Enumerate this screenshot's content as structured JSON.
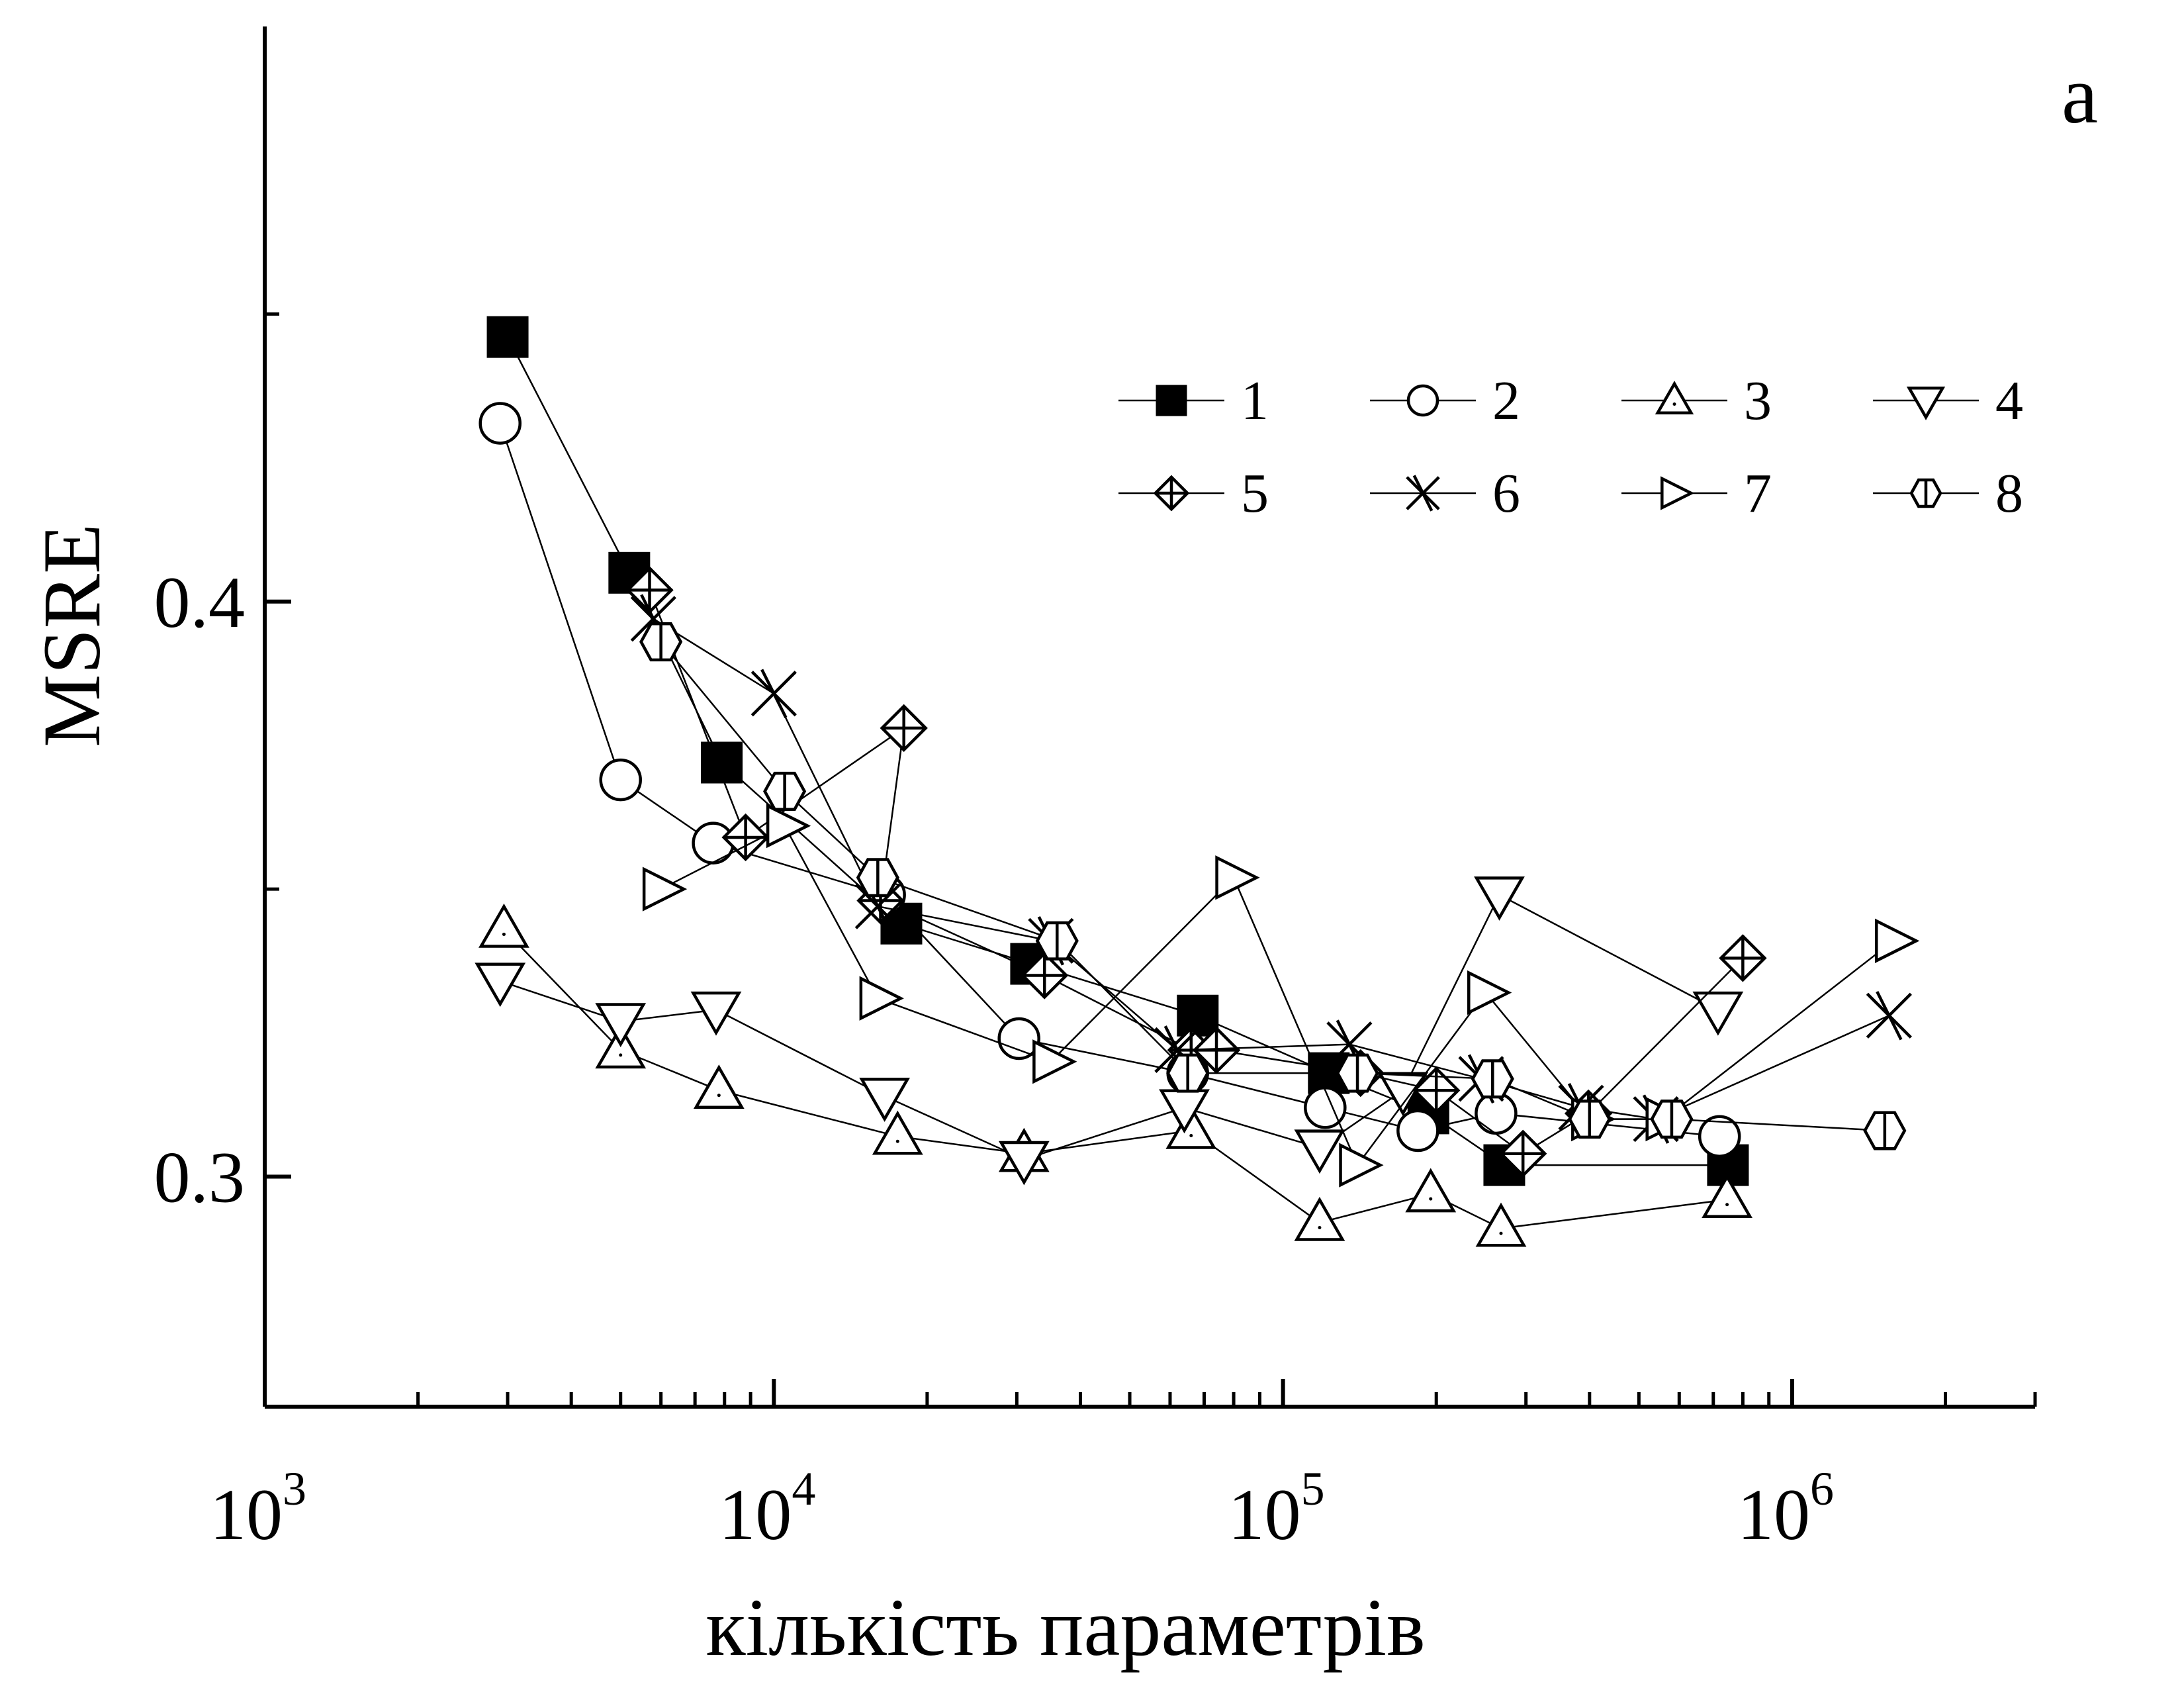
{
  "chart_data": {
    "type": "scatter",
    "panel_label": "a",
    "xlabel": "кількість параметрів",
    "ylabel": "MSRE",
    "x_scale": "log",
    "xlim": [
      1000,
      3000000
    ],
    "ylim": [
      0.26,
      0.5
    ],
    "x_ticks": [
      {
        "value": 1000,
        "base": "10",
        "exp": "3"
      },
      {
        "value": 10000,
        "base": "10",
        "exp": "4"
      },
      {
        "value": 100000,
        "base": "10",
        "exp": "5"
      },
      {
        "value": 1000000,
        "base": "10",
        "exp": "6"
      }
    ],
    "y_ticks": [
      {
        "value": 0.3,
        "label": "0.3"
      },
      {
        "value": 0.4,
        "label": "0.4"
      }
    ],
    "y_minor_ticks": [
      0.35,
      0.45
    ],
    "grid": false,
    "legend_position": "top-right",
    "legend_columns": 4,
    "series": [
      {
        "name": "1",
        "marker": "square-filled",
        "points": [
          [
            3000,
            0.446
          ],
          [
            5200,
            0.405
          ],
          [
            7900,
            0.372
          ],
          [
            17800,
            0.344
          ],
          [
            32000,
            0.337
          ],
          [
            68000,
            0.328
          ],
          [
            123000,
            0.318
          ],
          [
            193000,
            0.311
          ],
          [
            272000,
            0.302
          ],
          [
            748000,
            0.302
          ]
        ]
      },
      {
        "name": "2",
        "marker": "circle",
        "points": [
          [
            2900,
            0.431
          ],
          [
            5000,
            0.369
          ],
          [
            7600,
            0.358
          ],
          [
            16500,
            0.349
          ],
          [
            30300,
            0.324
          ],
          [
            65000,
            0.318
          ],
          [
            121000,
            0.312
          ],
          [
            184000,
            0.308
          ],
          [
            262000,
            0.311
          ],
          [
            720000,
            0.307
          ]
        ]
      },
      {
        "name": "3",
        "marker": "triangle-up",
        "points": [
          [
            2950,
            0.343
          ],
          [
            5000,
            0.322
          ],
          [
            7800,
            0.315
          ],
          [
            17500,
            0.307
          ],
          [
            31000,
            0.304
          ],
          [
            66000,
            0.308
          ],
          [
            118000,
            0.292
          ],
          [
            195000,
            0.297
          ],
          [
            268000,
            0.291
          ],
          [
            745000,
            0.296
          ]
        ]
      },
      {
        "name": "4",
        "marker": "triangle-down",
        "points": [
          [
            2900,
            0.334
          ],
          [
            5000,
            0.327
          ],
          [
            7700,
            0.329
          ],
          [
            16500,
            0.314
          ],
          [
            31000,
            0.303
          ],
          [
            64000,
            0.312
          ],
          [
            118000,
            0.305
          ],
          [
            172000,
            0.315
          ],
          [
            266000,
            0.349
          ],
          [
            715000,
            0.329
          ]
        ]
      },
      {
        "name": "5",
        "marker": "diamond-cross",
        "points": [
          [
            5700,
            0.402
          ],
          [
            8800,
            0.359
          ],
          [
            18000,
            0.378
          ],
          [
            16200,
            0.348
          ],
          [
            34000,
            0.335
          ],
          [
            66000,
            0.322
          ],
          [
            74000,
            0.322
          ],
          [
            142000,
            0.318
          ],
          [
            200000,
            0.315
          ],
          [
            296000,
            0.304
          ],
          [
            398000,
            0.311
          ],
          [
            800000,
            0.338
          ]
        ]
      },
      {
        "name": "6",
        "marker": "star-x",
        "points": [
          [
            5800,
            0.397
          ],
          [
            10000,
            0.384
          ],
          [
            16000,
            0.347
          ],
          [
            35000,
            0.341
          ],
          [
            62000,
            0.322
          ],
          [
            135000,
            0.323
          ],
          [
            245000,
            0.317
          ],
          [
            385000,
            0.312
          ],
          [
            540000,
            0.31
          ],
          [
            1550000,
            0.328
          ]
        ]
      },
      {
        "name": "7",
        "marker": "triangle-right",
        "points": [
          [
            6000,
            0.35
          ],
          [
            10500,
            0.361
          ],
          [
            16000,
            0.331
          ],
          [
            35000,
            0.32
          ],
          [
            80000,
            0.352
          ],
          [
            140000,
            0.302
          ],
          [
            250000,
            0.332
          ],
          [
            400000,
            0.31
          ],
          [
            560000,
            0.31
          ],
          [
            1580000,
            0.341
          ]
        ]
      },
      {
        "name": "8",
        "marker": "hexagon",
        "points": [
          [
            6000,
            0.393
          ],
          [
            10500,
            0.367
          ],
          [
            16000,
            0.352
          ],
          [
            36000,
            0.341
          ],
          [
            65000,
            0.318
          ],
          [
            140000,
            0.318
          ],
          [
            258000,
            0.317
          ],
          [
            400000,
            0.31
          ],
          [
            580000,
            0.31
          ],
          [
            1520000,
            0.308
          ]
        ]
      }
    ]
  }
}
